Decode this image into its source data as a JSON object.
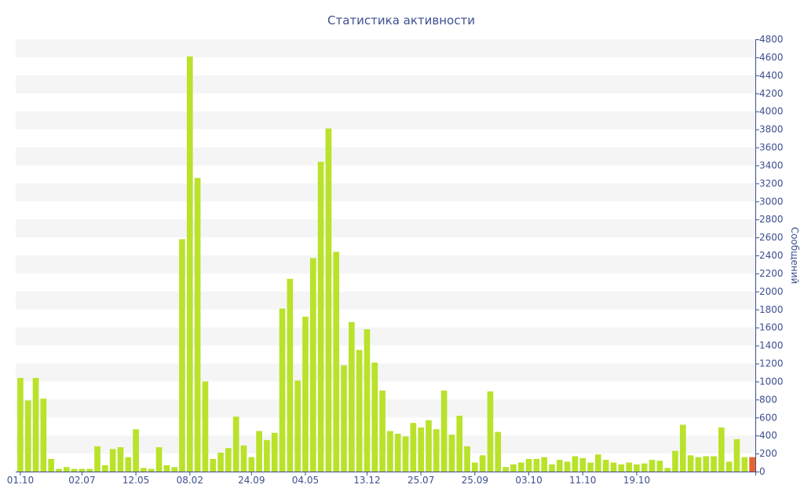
{
  "chart_data": {
    "type": "bar",
    "title": "Статистика активности",
    "ylabel": "Сообщений",
    "xlabel": "",
    "ylim": [
      0,
      4800
    ],
    "yticks": [
      0,
      200,
      400,
      600,
      800,
      1000,
      1200,
      1400,
      1600,
      1800,
      2000,
      2200,
      2400,
      2600,
      2800,
      3000,
      3200,
      3400,
      3600,
      3800,
      4000,
      4200,
      4400,
      4600,
      4800
    ],
    "x_tick_labels": [
      {
        "index": 0,
        "label": "01.10"
      },
      {
        "index": 8,
        "label": "02.07"
      },
      {
        "index": 15,
        "label": "12.05"
      },
      {
        "index": 22,
        "label": "08.02"
      },
      {
        "index": 30,
        "label": "24.09"
      },
      {
        "index": 37,
        "label": "04.05"
      },
      {
        "index": 45,
        "label": "13.12"
      },
      {
        "index": 52,
        "label": "25.07"
      },
      {
        "index": 59,
        "label": "25.09"
      },
      {
        "index": 66,
        "label": "03.10"
      },
      {
        "index": 73,
        "label": "11.10"
      },
      {
        "index": 80,
        "label": "19.10"
      }
    ],
    "values": [
      1040,
      790,
      1040,
      810,
      140,
      30,
      50,
      30,
      30,
      30,
      280,
      70,
      250,
      270,
      160,
      470,
      40,
      30,
      270,
      70,
      50,
      2580,
      4610,
      3260,
      1000,
      140,
      210,
      260,
      610,
      290,
      160,
      450,
      350,
      430,
      1810,
      2140,
      1010,
      1720,
      2370,
      3440,
      3810,
      2440,
      1180,
      1660,
      1350,
      1580,
      1210,
      900,
      450,
      420,
      390,
      540,
      490,
      570,
      470,
      900,
      410,
      620,
      280,
      100,
      180,
      890,
      440,
      50,
      80,
      100,
      140,
      140,
      160,
      80,
      130,
      110,
      170,
      150,
      100,
      190,
      130,
      100,
      80,
      100,
      80,
      90,
      130,
      120,
      40,
      230,
      520,
      180,
      160,
      170,
      170,
      490,
      110,
      360,
      160,
      160
    ],
    "highlight_index": 95,
    "bar_color": "#b9e22a",
    "highlight_color": "#e8632c",
    "grid": true,
    "grid_band_color": "#f5f5f5",
    "axis_color": "#3e4f8f"
  }
}
